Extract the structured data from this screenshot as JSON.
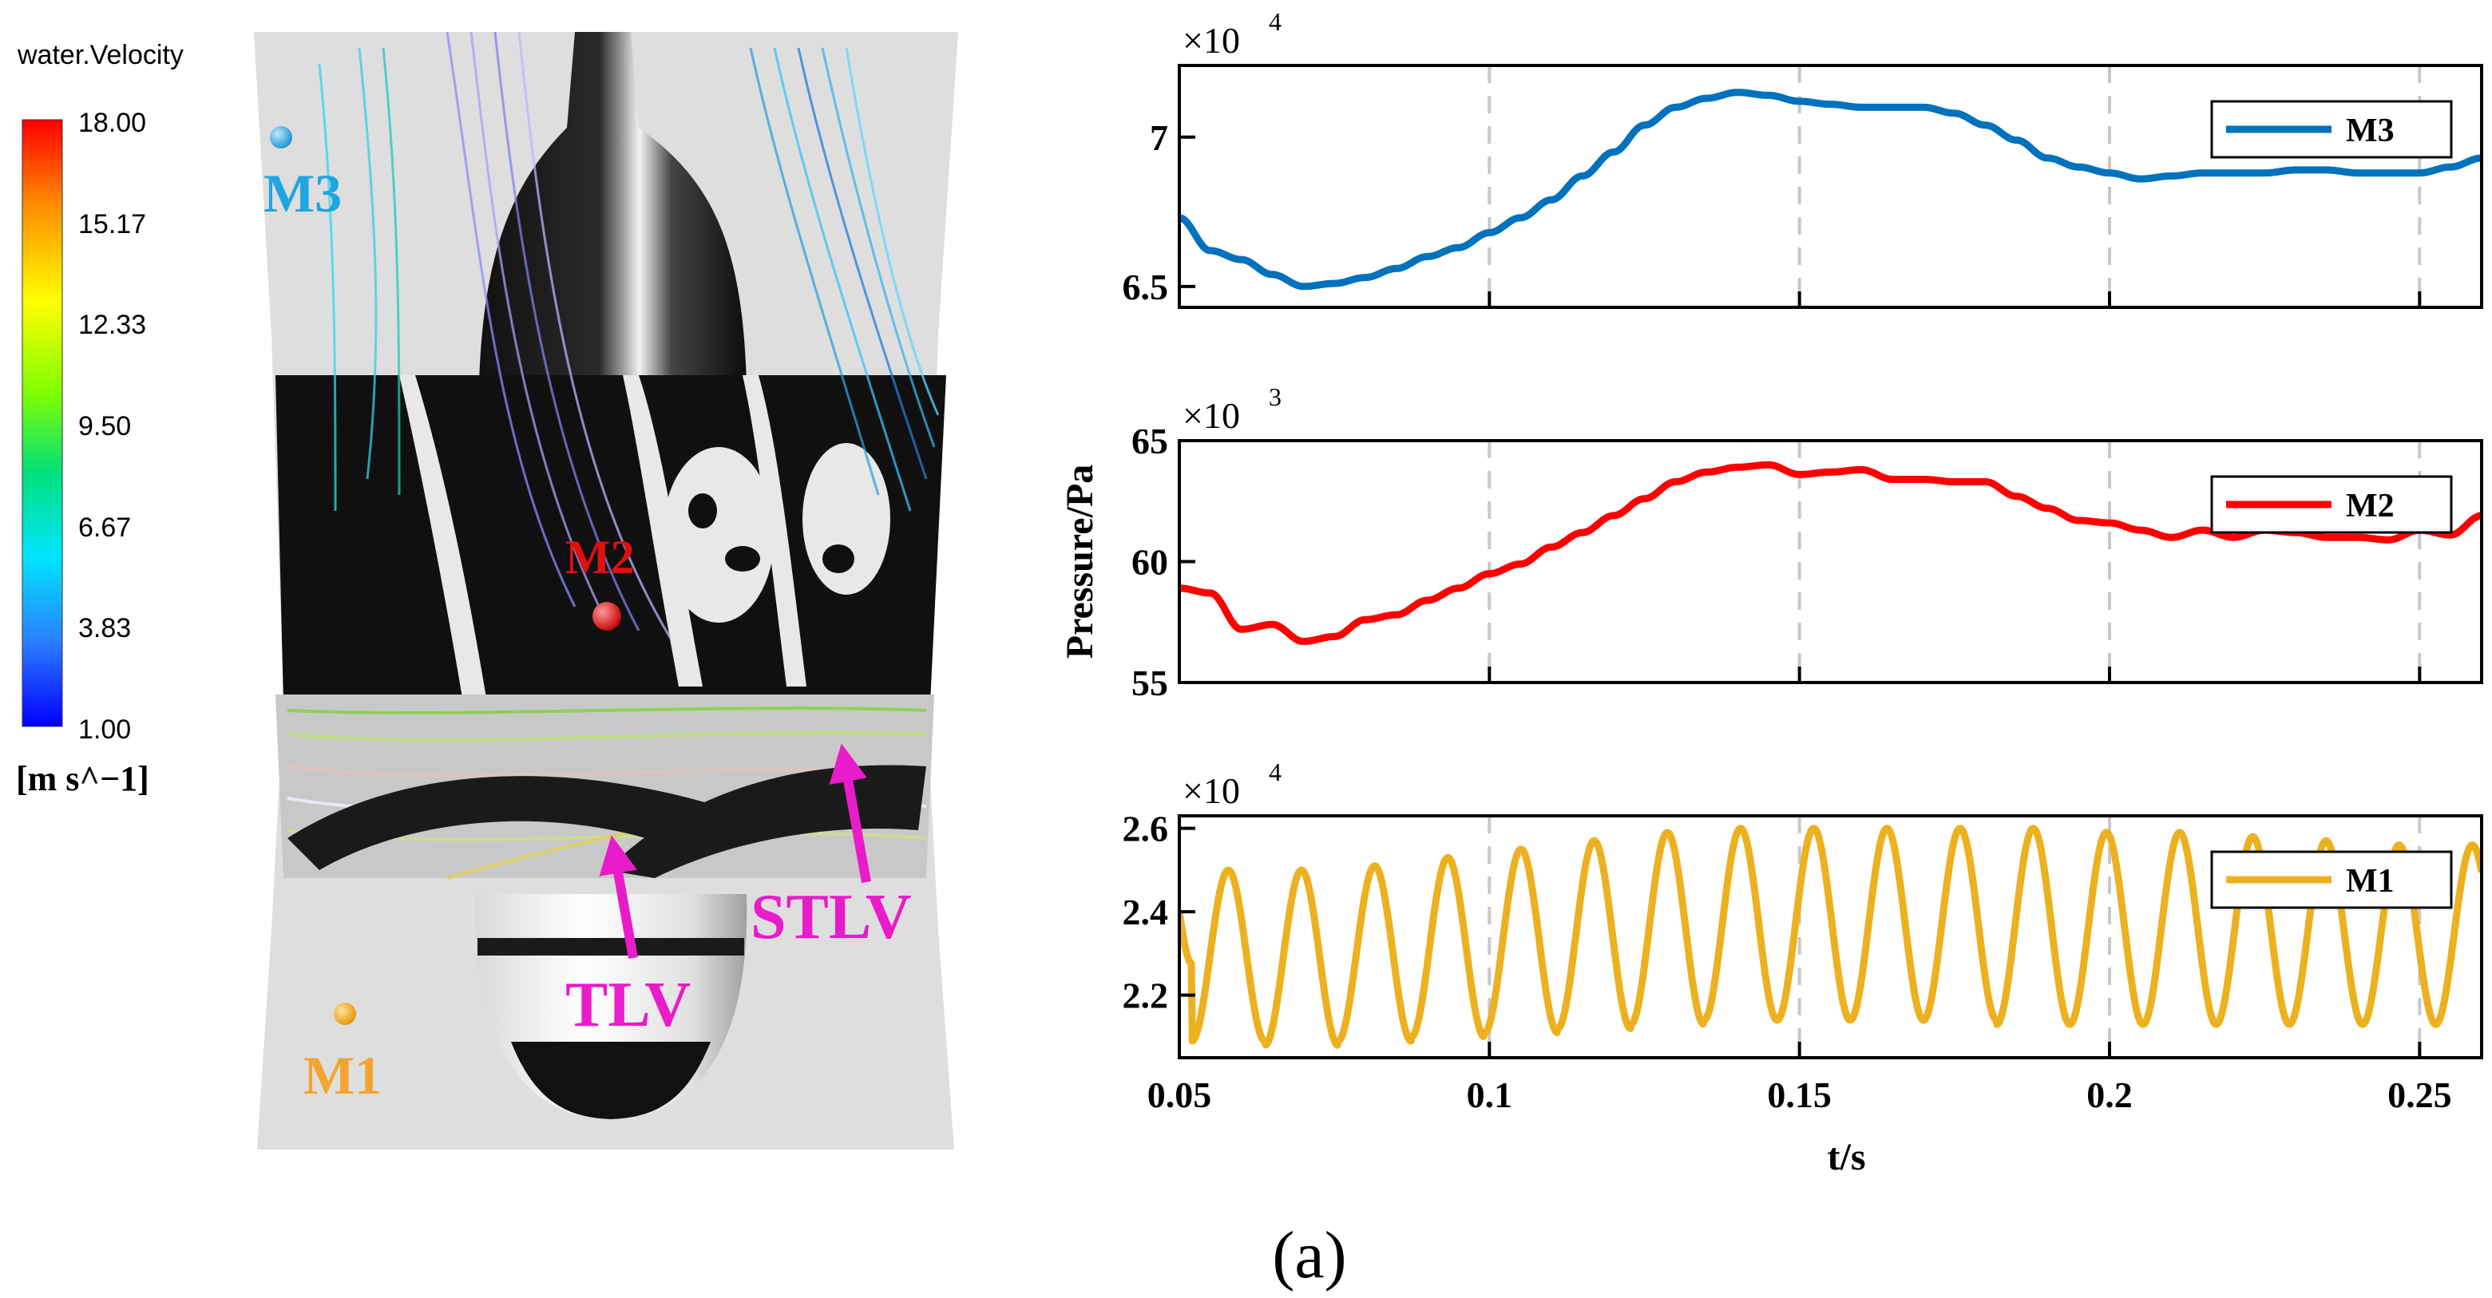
{
  "figure_label": "(a)",
  "cfd": {
    "colorbar": {
      "title": "water.Velocity",
      "ticks": [
        "18.00",
        "15.17",
        "12.33",
        "9.50",
        "6.67",
        "3.83",
        "1.00"
      ],
      "unit": "[m s^−1]",
      "colors": [
        "#ff0000",
        "#ff8c00",
        "#ffff00",
        "#7fff00",
        "#00e07a",
        "#00e5ff",
        "#2b7fff",
        "#0000ff"
      ]
    },
    "monitor_points": [
      {
        "label": "M3",
        "color": "#1fa6e0"
      },
      {
        "label": "M2",
        "color": "#e01010"
      },
      {
        "label": "M1",
        "color": "#f2a531"
      }
    ],
    "annotations": [
      {
        "label": "TLV",
        "color": "#e81cc9"
      },
      {
        "label": "STLV",
        "color": "#e81cc9"
      }
    ]
  },
  "chart_data": [
    {
      "type": "line",
      "title": "",
      "ylabel": "Pressure/Pa",
      "xlabel": "",
      "exponent_label": "×10",
      "exponent_power": "4",
      "xlim": [
        0.05,
        0.26
      ],
      "ylim": [
        64300,
        72400
      ],
      "yticks": [
        65000,
        70000
      ],
      "ytick_labels": [
        "6.5",
        "7"
      ],
      "xticks": [
        0.05,
        0.1,
        0.15,
        0.2,
        0.25
      ],
      "series": [
        {
          "name": "M3",
          "color": "#0072bd",
          "x": [
            0.05,
            0.055,
            0.06,
            0.065,
            0.07,
            0.075,
            0.08,
            0.085,
            0.09,
            0.095,
            0.1,
            0.105,
            0.11,
            0.115,
            0.12,
            0.125,
            0.13,
            0.135,
            0.14,
            0.145,
            0.15,
            0.155,
            0.16,
            0.165,
            0.17,
            0.175,
            0.18,
            0.185,
            0.19,
            0.195,
            0.2,
            0.205,
            0.21,
            0.215,
            0.22,
            0.225,
            0.23,
            0.235,
            0.24,
            0.245,
            0.25,
            0.255,
            0.26
          ],
          "values": [
            67300,
            66200,
            65900,
            65400,
            65000,
            65100,
            65300,
            65600,
            66000,
            66300,
            66800,
            67300,
            67900,
            68700,
            69500,
            70400,
            71000,
            71300,
            71500,
            71400,
            71200,
            71100,
            71000,
            71000,
            71000,
            70800,
            70400,
            69900,
            69300,
            69000,
            68800,
            68600,
            68700,
            68800,
            68800,
            68800,
            68900,
            68900,
            68800,
            68800,
            68800,
            69000,
            69300
          ]
        }
      ]
    },
    {
      "type": "line",
      "title": "",
      "ylabel": "",
      "xlabel": "",
      "exponent_label": "×10",
      "exponent_power": "3",
      "xlim": [
        0.05,
        0.26
      ],
      "ylim": [
        55000,
        65000
      ],
      "yticks": [
        55000,
        60000,
        65000
      ],
      "ytick_labels": [
        "55",
        "60",
        "65"
      ],
      "xticks": [
        0.05,
        0.1,
        0.15,
        0.2,
        0.25
      ],
      "series": [
        {
          "name": "M2",
          "color": "#ff0000",
          "x": [
            0.05,
            0.055,
            0.06,
            0.065,
            0.07,
            0.075,
            0.08,
            0.085,
            0.09,
            0.095,
            0.1,
            0.105,
            0.11,
            0.115,
            0.12,
            0.125,
            0.13,
            0.135,
            0.14,
            0.145,
            0.15,
            0.155,
            0.16,
            0.165,
            0.17,
            0.175,
            0.18,
            0.185,
            0.19,
            0.195,
            0.2,
            0.205,
            0.21,
            0.215,
            0.22,
            0.225,
            0.23,
            0.235,
            0.24,
            0.245,
            0.25,
            0.255,
            0.26
          ],
          "values": [
            58900,
            58700,
            57200,
            57400,
            56700,
            56900,
            57600,
            57800,
            58400,
            58900,
            59500,
            59900,
            60600,
            61200,
            61900,
            62600,
            63300,
            63700,
            63900,
            64000,
            63600,
            63700,
            63800,
            63400,
            63400,
            63300,
            63300,
            62700,
            62200,
            61700,
            61600,
            61300,
            61000,
            61300,
            61000,
            61300,
            61200,
            61000,
            61000,
            60900,
            61300,
            61100,
            61900
          ]
        }
      ]
    },
    {
      "type": "line",
      "title": "",
      "ylabel": "",
      "xlabel": "t/s",
      "exponent_label": "×10",
      "exponent_power": "4",
      "xlim": [
        0.05,
        0.26
      ],
      "ylim": [
        20500,
        26300
      ],
      "yticks": [
        22000,
        24000,
        26000
      ],
      "ytick_labels": [
        "2.2",
        "2.4",
        "2.6"
      ],
      "xticks": [
        0.05,
        0.1,
        0.15,
        0.2,
        0.25
      ],
      "xtick_labels": [
        "0.05",
        "0.1",
        "0.15",
        "0.2",
        "0.25"
      ],
      "series": [
        {
          "name": "M1",
          "color": "#edb120",
          "oscillation": {
            "start_value": 24000,
            "period": 0.0118,
            "phase_start": 0.052
          },
          "peaks": [
            25000,
            25000,
            25100,
            25300,
            25500,
            25700,
            25900,
            26000,
            26000,
            26000,
            26000,
            26000,
            25900,
            25900,
            25800,
            25700,
            25600,
            25600
          ],
          "troughs": [
            20900,
            20800,
            20900,
            21000,
            21100,
            21200,
            21300,
            21400,
            21400,
            21400,
            21400,
            21300,
            21300,
            21300,
            21300,
            21300,
            21300,
            21300
          ]
        }
      ]
    }
  ]
}
